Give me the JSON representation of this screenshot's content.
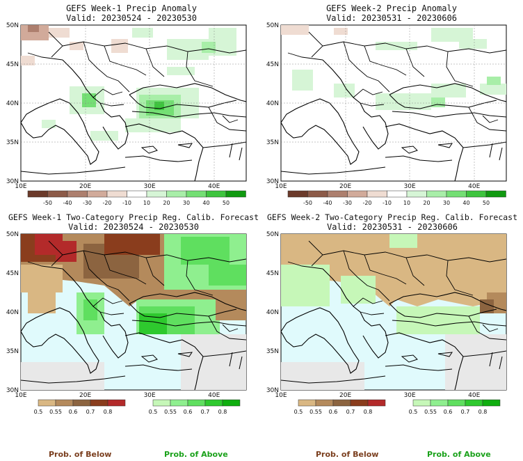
{
  "panels": [
    {
      "id": "p1",
      "title": "GEFS Week-1 Precip Anomaly",
      "subtitle": "Valid: 20230524 - 20230530",
      "type": "anomaly"
    },
    {
      "id": "p2",
      "title": "GEFS Week-2 Precip Anomaly",
      "subtitle": "Valid: 20230531 - 20230606",
      "type": "anomaly"
    },
    {
      "id": "p3",
      "title": "GEFS Week-1 Two-Category Precip Reg. Calib. Forecast",
      "subtitle": "Valid: 20230524 - 20230530",
      "type": "category"
    },
    {
      "id": "p4",
      "title": "GEFS Week-2 Two-Category Precip Reg. Calib. Forecast",
      "subtitle": "Valid: 20230531 - 20230606",
      "type": "category"
    }
  ],
  "axes": {
    "lat_labels": [
      "30N",
      "35N",
      "40N",
      "45N",
      "50N"
    ],
    "lon_labels": [
      "10E",
      "20E",
      "30E",
      "40E"
    ],
    "lat_values": [
      30,
      35,
      40,
      45,
      50
    ],
    "lon_values": [
      10,
      20,
      30,
      40
    ],
    "lon_range": [
      10,
      45
    ],
    "lat_range": [
      30,
      50
    ]
  },
  "anomaly_colorbar": {
    "labels": [
      "-50",
      "-40",
      "-30",
      "-20",
      "-10",
      "10",
      "20",
      "30",
      "40",
      "50"
    ],
    "colors": [
      "#6b3a2a",
      "#8c5a48",
      "#ad7f6e",
      "#d1aa9a",
      "#efdcd2",
      "#ffffff",
      "#d6f5d6",
      "#a8eea8",
      "#74df74",
      "#3ec43e",
      "#109a10"
    ]
  },
  "below_colorbar": {
    "labels": [
      "0.5",
      "0.55",
      "0.6",
      "0.7",
      "0.8"
    ],
    "colors": [
      "#d9b783",
      "#b48a5c",
      "#8c6440",
      "#8a3d1d",
      "#b32a2a"
    ]
  },
  "above_colorbar": {
    "labels": [
      "0.5",
      "0.55",
      "0.6",
      "0.7",
      "0.8"
    ],
    "colors": [
      "#c6f7b8",
      "#8fef8f",
      "#5fdf5f",
      "#2ec92e",
      "#0fae0f"
    ]
  },
  "category_labels": {
    "below": "Prob. of Below",
    "above": "Prob. of Above"
  },
  "colors": {
    "sea": "#e0fafc",
    "land_gray": "#e8e8e8",
    "below_text": "#7a3e1e",
    "above_text": "#1aa11a"
  }
}
